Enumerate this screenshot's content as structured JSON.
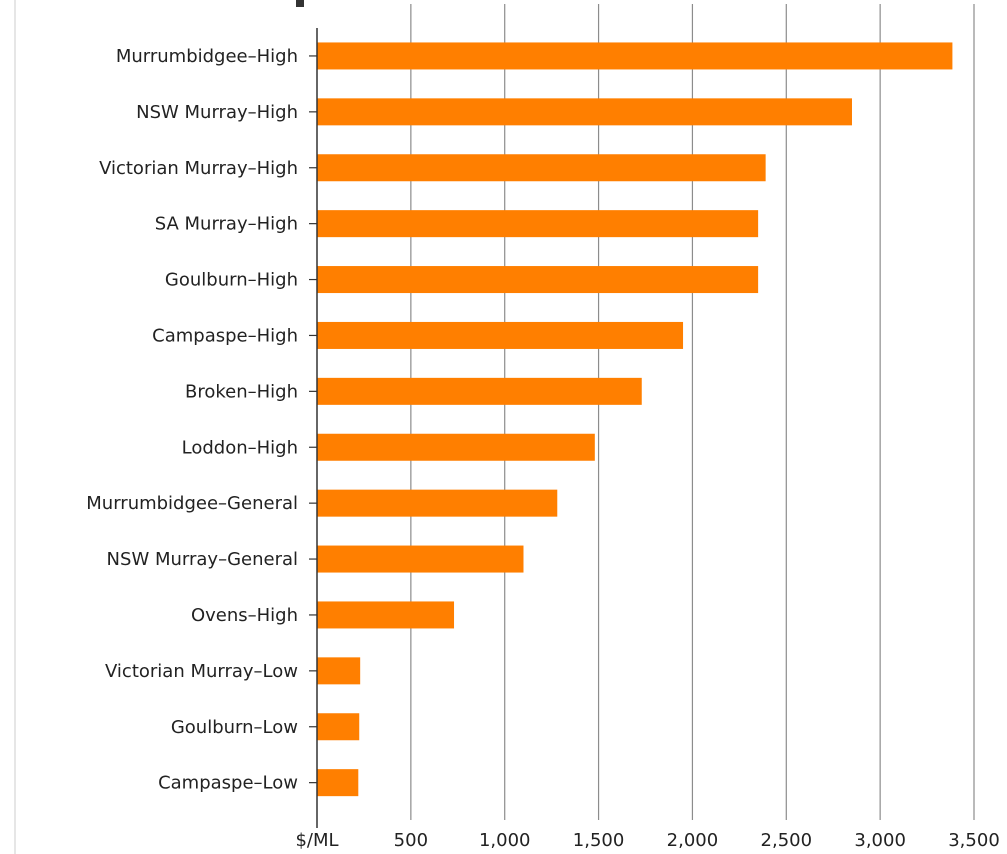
{
  "chart_data": {
    "type": "bar",
    "orientation": "horizontal",
    "title": "",
    "xlabel": "$/ML",
    "ylabel": "",
    "xlim": [
      0,
      3500
    ],
    "xticks": [
      0,
      500,
      1000,
      1500,
      2000,
      2500,
      3000,
      3500
    ],
    "xtick_labels": [
      "$/ML",
      "500",
      "1,000",
      "1,500",
      "2,000",
      "2,500",
      "3,000",
      "3,500"
    ],
    "grid": true,
    "categories": [
      "Murrumbidgee–High",
      "NSW Murray–High",
      "Victorian Murray–High",
      "SA Murray–High",
      "Goulburn–High",
      "Campaspe–High",
      "Broken–High",
      "Loddon–High",
      "Murrumbidgee–General",
      "NSW Murray–General",
      "Ovens–High",
      "Victorian Murray–Low",
      "Goulburn–Low",
      "Campaspe–Low"
    ],
    "values": [
      3385,
      2850,
      2390,
      2350,
      2350,
      1950,
      1730,
      1480,
      1280,
      1100,
      730,
      230,
      225,
      220
    ],
    "colors": {
      "bar": "#ff7f00",
      "grid": "#8c8c8c",
      "axis": "#333333",
      "text": "#222222"
    }
  }
}
